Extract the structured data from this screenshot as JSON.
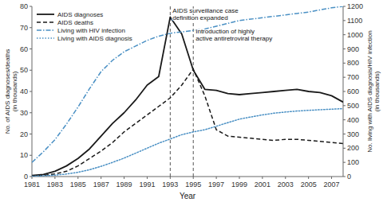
{
  "chart_data": {
    "type": "line",
    "x": [
      1981,
      1982,
      1983,
      1984,
      1985,
      1986,
      1987,
      1988,
      1989,
      1990,
      1991,
      1992,
      1993,
      1994,
      1995,
      1996,
      1997,
      1998,
      1999,
      2000,
      2001,
      2002,
      2003,
      2004,
      2005,
      2006,
      2007,
      2008
    ],
    "series": [
      {
        "name": "AIDS diagnoses",
        "color": "#1a1a1a",
        "line_style": "solid",
        "values": [
          0.5,
          1.0,
          2.5,
          5.0,
          8.5,
          13.0,
          19.0,
          25.0,
          30.0,
          36.0,
          43.0,
          47.0,
          75.0,
          67.0,
          50.0,
          41.0,
          40.5,
          39.0,
          38.5,
          39.0,
          39.5,
          40.0,
          40.5,
          41.0,
          40.0,
          39.5,
          38.0,
          35.0
        ]
      },
      {
        "name": "AIDS deaths",
        "color": "#1a1a1a",
        "line_style": "dashed",
        "values": [
          0.3,
          0.6,
          1.2,
          2.5,
          5.0,
          8.5,
          12.0,
          16.0,
          21.0,
          25.0,
          29.0,
          33.0,
          37.0,
          43.0,
          50.5,
          38.0,
          22.0,
          19.0,
          18.5,
          18.0,
          17.5,
          17.0,
          17.5,
          17.5,
          17.0,
          16.5,
          16.0,
          15.5
        ]
      },
      {
        "name": "Living with HIV infection",
        "color": "#4a90c4",
        "line_style": "dashdot",
        "axis": "y2",
        "values": [
          100,
          175,
          260,
          370,
          490,
          620,
          740,
          820,
          880,
          920,
          960,
          990,
          1010,
          1020,
          1030,
          1040,
          1060,
          1080,
          1100,
          1110,
          1120,
          1130,
          1140,
          1150,
          1160,
          1175,
          1190,
          1200
        ]
      },
      {
        "name": "Living with AIDS diagnosis",
        "color": "#4a90c4",
        "line_style": "dotted",
        "axis": "y2",
        "values": [
          2,
          5,
          10,
          18,
          30,
          48,
          72,
          100,
          130,
          165,
          200,
          235,
          265,
          295,
          315,
          330,
          355,
          380,
          405,
          420,
          435,
          447,
          455,
          462,
          467,
          471,
          475,
          479
        ]
      }
    ],
    "xlim": [
      1981,
      2008
    ],
    "xticks": [
      1981,
      1983,
      1985,
      1987,
      1989,
      1991,
      1993,
      1995,
      1997,
      1999,
      2001,
      2003,
      2005,
      2007
    ],
    "ylim": [
      0,
      80
    ],
    "yticks": [
      0,
      10,
      20,
      30,
      40,
      50,
      60,
      70,
      80
    ],
    "y2lim": [
      0,
      1200
    ],
    "y2ticks": [
      0,
      100,
      200,
      300,
      400,
      500,
      600,
      700,
      800,
      900,
      1000,
      1100,
      1200
    ],
    "xlabel": "Year",
    "ylabel": "No. of AIDS diagnoses/deaths\n(in thousands)",
    "y2label": "No. living with AIDS diagnosis/HIV infection\n(in thousands)",
    "annotations": [
      {
        "text": "AIDS surveillance case\ndefinition expanded",
        "x": 1993
      },
      {
        "text": "Introduction of highly\nactive antiretroviral therapy",
        "x": 1995
      }
    ],
    "legend": "upper left",
    "grid": false
  }
}
